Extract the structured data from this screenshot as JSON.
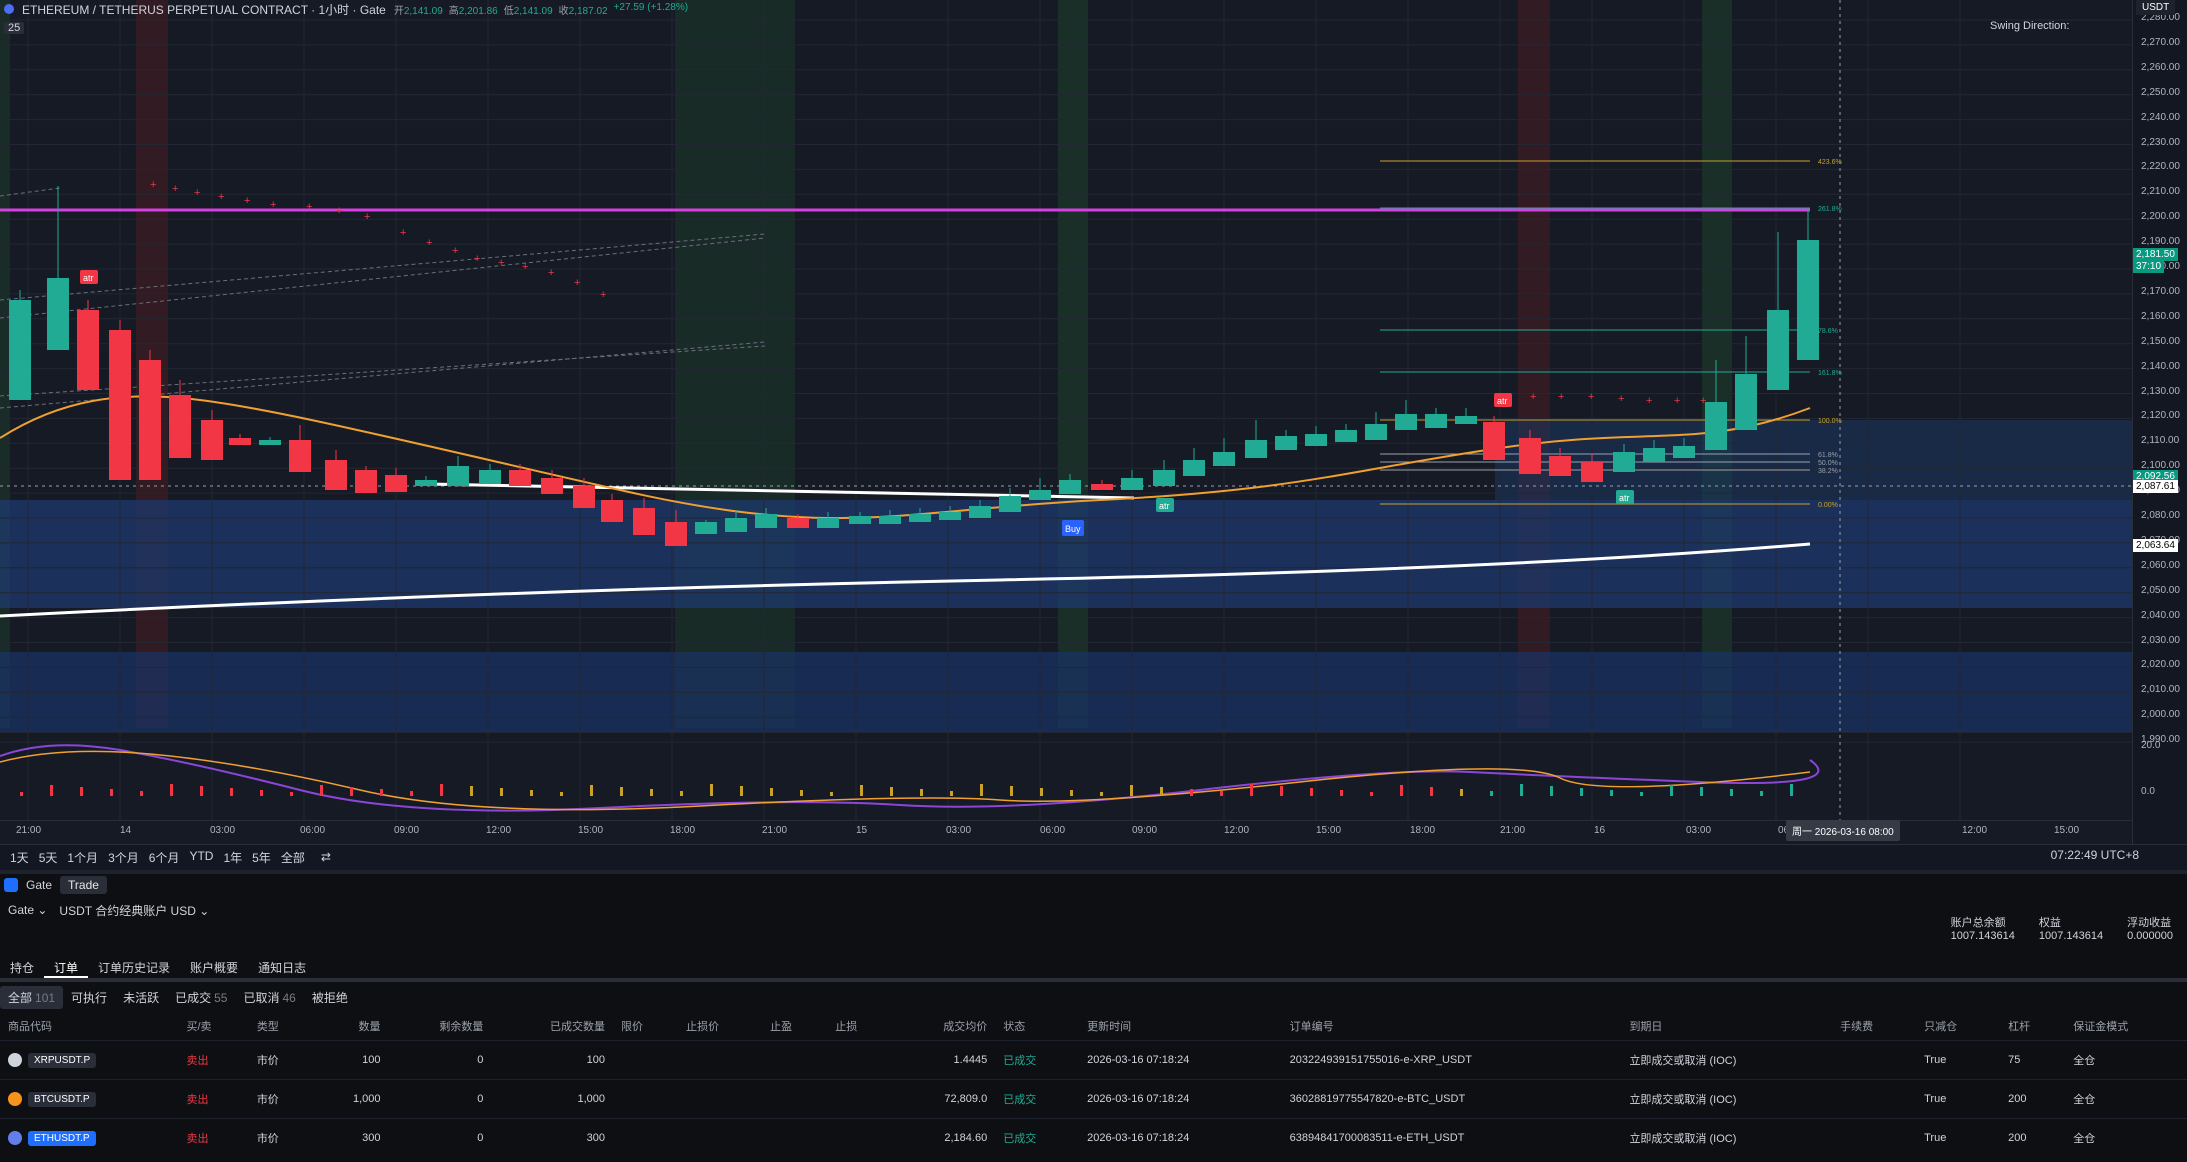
{
  "header": {
    "title": "ETHEREUM / TETHERUS PERPETUAL CONTRACT · 1小时 · Gate",
    "ohlc": [
      {
        "label": "开",
        "value": "2,141.09"
      },
      {
        "label": "高",
        "value": "2,201.86"
      },
      {
        "label": "低",
        "value": "2,141.09"
      },
      {
        "label": "收",
        "value": "2,187.02"
      },
      {
        "label": "",
        "value": "+27.59 (+1.28%)"
      }
    ],
    "interval_badge": "25",
    "swing_label": "Swing Direction:",
    "currency": "USDT"
  },
  "price_axis": {
    "ticks": [
      "2,280.00",
      "2,270.00",
      "2,260.00",
      "2,250.00",
      "2,240.00",
      "2,230.00",
      "2,220.00",
      "2,210.00",
      "2,200.00",
      "2,190.00",
      "2,180.00",
      "2,170.00",
      "2,160.00",
      "2,150.00",
      "2,140.00",
      "2,130.00",
      "2,120.00",
      "2,110.00",
      "2,100.00",
      "2,090.00",
      "2,080.00",
      "2,070.00",
      "2,060.00",
      "2,050.00",
      "2,040.00",
      "2,030.00",
      "2,020.00",
      "2,010.00",
      "2,000.00",
      "1,990.00"
    ],
    "tags": [
      {
        "text": "2,181.50",
        "color": "#089981"
      },
      {
        "text": "37:10",
        "color": "#089981"
      },
      {
        "text": "2,092.56",
        "color": "#089981"
      },
      {
        "text": "2,087.61",
        "color": "#d1d4dc"
      },
      {
        "text": "2,063.64",
        "color": "#ffffff"
      }
    ],
    "osc_ticks": [
      "20.0",
      "0.0"
    ]
  },
  "fib": [
    "423.6%",
    "261.8%",
    "78.6%",
    "161.8%",
    "100.0%",
    "61.8%",
    "50.0%",
    "38.2%",
    "0.00%"
  ],
  "markers": {
    "buy": "Buy",
    "atr": "atr"
  },
  "time_axis": {
    "ticks": [
      "21:00",
      "14",
      "03:00",
      "06:00",
      "09:00",
      "12:00",
      "15:00",
      "18:00",
      "21:00",
      "15",
      "03:00",
      "06:00",
      "09:00",
      "12:00",
      "15:00",
      "18:00",
      "21:00",
      "16",
      "03:00",
      "06:",
      "12:00",
      "15:00"
    ],
    "highlight": "周一 2026-03-16   08:00"
  },
  "range_bar": {
    "ranges": [
      "1天",
      "5天",
      "1个月",
      "3个月",
      "6个月",
      "YTD",
      "1年",
      "5年",
      "全部"
    ],
    "clock": "07:22:49 UTC+8"
  },
  "panel": {
    "broker": "Gate",
    "trade_tab": "Trade",
    "broker_select": "Gate",
    "account_select": "USDT 合约经典账户 USD",
    "stats": [
      {
        "label": "账户总余额",
        "value": "1007.143614"
      },
      {
        "label": "权益",
        "value": "1007.143614"
      },
      {
        "label": "浮动收益",
        "value": "0.000000"
      }
    ],
    "tabs": [
      "持仓",
      "订单",
      "订单历史记录",
      "账户概要",
      "通知日志"
    ],
    "filters": [
      {
        "label": "全部",
        "count": "101"
      },
      {
        "label": "可执行",
        "count": ""
      },
      {
        "label": "未活跃",
        "count": ""
      },
      {
        "label": "已成交",
        "count": "55"
      },
      {
        "label": "已取消",
        "count": "46"
      },
      {
        "label": "被拒绝",
        "count": ""
      }
    ],
    "columns": [
      "商品代码",
      "买/卖",
      "类型",
      "数量",
      "剩余数量",
      "已成交数量",
      "限价",
      "止损价",
      "止盈",
      "止损",
      "成交均价",
      "状态",
      "更新时间",
      "订单编号",
      "到期日",
      "手续费",
      "只减仓",
      "杠杆",
      "保证金模式"
    ],
    "orders": [
      {
        "symbol": "XRPUSDT.P",
        "side": "卖出",
        "type": "市价",
        "qty": "100",
        "remaining": "0",
        "filled": "100",
        "avg": "1.4445",
        "status": "已成交",
        "time": "2026-03-16 07:18:24",
        "order_id": "203224939151755016-e-XRP_USDT",
        "expiry": "立即成交或取消 (IOC)",
        "reduce": "True",
        "leverage": "75",
        "margin": "全仓",
        "coin_color": "#cfd3da"
      },
      {
        "symbol": "BTCUSDT.P",
        "side": "卖出",
        "type": "市价",
        "qty": "1,000",
        "remaining": "0",
        "filled": "1,000",
        "avg": "72,809.0",
        "status": "已成交",
        "time": "2026-03-16 07:18:24",
        "order_id": "36028819775547820-e-BTC_USDT",
        "expiry": "立即成交或取消 (IOC)",
        "reduce": "True",
        "leverage": "200",
        "margin": "全仓",
        "coin_color": "#f7931a"
      },
      {
        "symbol": "ETHUSDT.P",
        "side": "卖出",
        "type": "市价",
        "qty": "300",
        "remaining": "0",
        "filled": "300",
        "avg": "2,184.60",
        "status": "已成交",
        "time": "2026-03-16 07:18:24",
        "order_id": "63894841700083511-e-ETH_USDT",
        "expiry": "立即成交或取消 (IOC)",
        "reduce": "True",
        "leverage": "200",
        "margin": "全仓",
        "coin_color": "#627eea"
      }
    ]
  }
}
